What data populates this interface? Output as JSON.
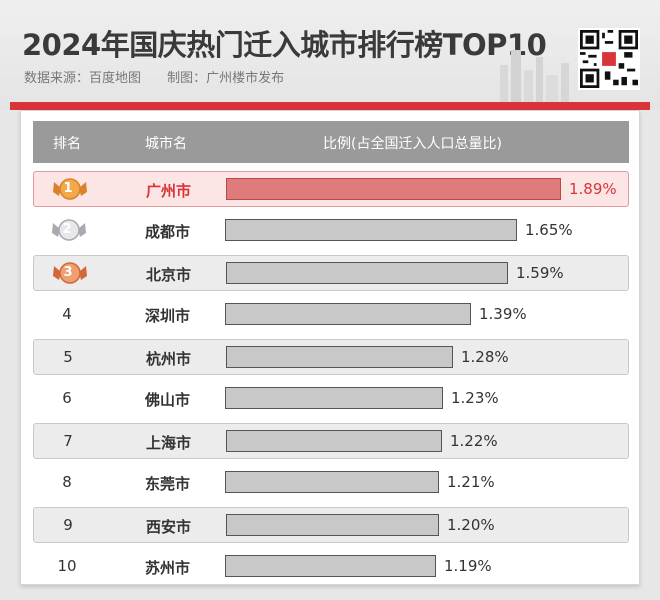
{
  "header": {
    "title": "2024年国庆热门迁入城市排行榜TOP10",
    "source": "数据来源：百度地图",
    "credit": "制图：广州楼市发布"
  },
  "table": {
    "col_rank": "排名",
    "col_city": "城市名",
    "col_ratio": "比例(占全国迁入人口总量比)"
  },
  "colors": {
    "accent": "#d9343a",
    "bar": "#c8c8c8",
    "highlight_bar": "#e07b7b"
  },
  "chart_data": {
    "type": "bar",
    "orientation": "horizontal",
    "categories": [
      "广州市",
      "成都市",
      "北京市",
      "深圳市",
      "杭州市",
      "佛山市",
      "上海市",
      "东莞市",
      "西安市",
      "苏州市"
    ],
    "ranks": [
      "1",
      "2",
      "3",
      "4",
      "5",
      "6",
      "7",
      "8",
      "9",
      "10"
    ],
    "values": [
      1.89,
      1.65,
      1.59,
      1.39,
      1.28,
      1.23,
      1.22,
      1.21,
      1.2,
      1.19
    ],
    "value_labels": [
      "1.89%",
      "1.65%",
      "1.59%",
      "1.39%",
      "1.28%",
      "1.23%",
      "1.22%",
      "1.21%",
      "1.20%",
      "1.19%"
    ],
    "title": "2024年国庆热门迁入城市排行榜TOP10",
    "unit": "%",
    "grid": false
  }
}
